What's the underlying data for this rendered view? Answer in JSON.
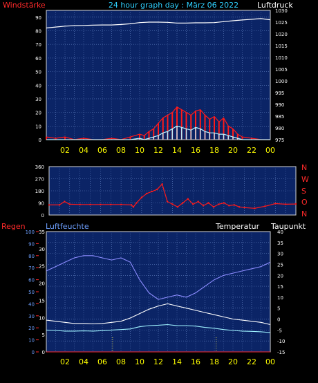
{
  "colors": {
    "background": "#000000",
    "plot_bg": "#0b2466",
    "grid": "#5f7fc0",
    "frame": "#d6d6d6",
    "wind": "#ff1a1a",
    "gust": "#b9f3ff",
    "pressure": "#ffffff",
    "temperature": "#ffffff",
    "dewpoint": "#9ff3ff",
    "humidity": "#8c8cff",
    "rain": "#ff2a2a",
    "title": "#2fd0ff",
    "hour_ticks": "#ffff00",
    "direction_labels": "#ff2a2a",
    "rain_axis": "#ff2a2a",
    "humidity_axis": "#6ea0ff",
    "white_text": "#ffffff",
    "marker": "#f7e84a"
  },
  "chart_data": [
    {
      "type": "line",
      "title": "24 hour graph day : März 06 2022",
      "left_label": "Windstärke",
      "right_label": "Luftdruck",
      "x_ticks": [
        "02",
        "04",
        "06",
        "08",
        "10",
        "12",
        "14",
        "16",
        "18",
        "20",
        "22",
        "00"
      ],
      "ylim_left": [
        0,
        95
      ],
      "y_ticks_left": [
        "90",
        "80",
        "70",
        "60",
        "50",
        "40",
        "30",
        "20",
        "10",
        "0"
      ],
      "ylim_right": [
        975,
        1030
      ],
      "y_ticks_right": [
        "1030",
        "1025",
        "1020",
        "1015",
        "1010",
        "1005",
        "1000",
        "995",
        "990",
        "985",
        "980",
        "975"
      ],
      "grid": true,
      "series": [
        {
          "key": "pressure",
          "axis": "right",
          "x": [
            0,
            1,
            2,
            3,
            4,
            5,
            6,
            7,
            8,
            9,
            10,
            11,
            12,
            13,
            14,
            15,
            16,
            17,
            18,
            19,
            20,
            21,
            22,
            23,
            24
          ],
          "y": [
            1022.5,
            1022.9,
            1023.3,
            1023.5,
            1023.6,
            1023.7,
            1023.8,
            1023.8,
            1024.0,
            1024.3,
            1024.8,
            1025.0,
            1025.0,
            1024.9,
            1024.6,
            1024.6,
            1024.7,
            1024.7,
            1024.8,
            1025.2,
            1025.6,
            1025.9,
            1026.2,
            1026.5,
            1026.0
          ]
        },
        {
          "key": "wind",
          "axis": "left",
          "x": [
            0,
            1,
            2,
            3,
            4,
            5,
            6,
            7,
            8,
            9,
            10,
            10.5,
            11,
            11.5,
            12,
            12.5,
            13,
            13.5,
            14,
            14.5,
            15,
            15.5,
            16,
            16.5,
            17,
            17.5,
            18,
            18.5,
            19,
            19.5,
            20,
            20.5,
            21,
            22,
            23,
            24
          ],
          "y": [
            2,
            1,
            2,
            0,
            1,
            0,
            0,
            1,
            0,
            2,
            4,
            3,
            6,
            8,
            12,
            16,
            18,
            20,
            24,
            22,
            20,
            18,
            21,
            22,
            18,
            15,
            17,
            13,
            16,
            10,
            8,
            4,
            2,
            1,
            0,
            0
          ]
        },
        {
          "key": "gust",
          "axis": "left",
          "x": [
            0,
            1,
            2,
            3,
            4,
            5,
            6,
            7,
            8,
            9,
            10,
            10.5,
            11,
            11.5,
            12,
            12.5,
            13,
            13.5,
            14,
            14.5,
            15,
            15.5,
            16,
            16.5,
            17,
            17.5,
            18,
            18.5,
            19,
            19.5,
            20,
            20.5,
            21,
            22,
            23,
            24
          ],
          "y": [
            0,
            0,
            0,
            0,
            0,
            0,
            0,
            0,
            0,
            0,
            1,
            0,
            1,
            2,
            3,
            5,
            6,
            8,
            10,
            9,
            8,
            7,
            9,
            8,
            6,
            5,
            5,
            4,
            4,
            3,
            2,
            1,
            0,
            0,
            0,
            0
          ]
        }
      ]
    },
    {
      "type": "scatter",
      "title": "",
      "right_labels": [
        "N",
        "W",
        "S",
        "O",
        "N"
      ],
      "x_ticks": [
        "02",
        "04",
        "06",
        "08",
        "10",
        "12",
        "14",
        "16",
        "18",
        "20",
        "22",
        "00"
      ],
      "ylim": [
        0,
        360
      ],
      "y_ticks": [
        "360",
        "270",
        "180",
        "90",
        "0"
      ],
      "grid": true,
      "series": [
        {
          "key": "wind_direction",
          "x": [
            0,
            1,
            1.5,
            2,
            3,
            4,
            5,
            6,
            7,
            8,
            8.2,
            8.5,
            9,
            9.5,
            10,
            10.5,
            11,
            11.5,
            12,
            12.5,
            13,
            13.5,
            14,
            14.5,
            15,
            15.5,
            16,
            16.5,
            17,
            17.5,
            18,
            18.5,
            19,
            20,
            21,
            22,
            23,
            24
          ],
          "y": [
            75,
            75,
            100,
            80,
            78,
            78,
            78,
            78,
            78,
            75,
            60,
            90,
            130,
            160,
            175,
            190,
            230,
            100,
            80,
            60,
            90,
            120,
            80,
            100,
            70,
            90,
            60,
            80,
            90,
            70,
            75,
            60,
            55,
            50,
            65,
            85,
            80,
            82
          ]
        }
      ]
    },
    {
      "type": "line",
      "title": "",
      "left_label": "Regen",
      "left2_label": "Luftfeuchte",
      "right_label": "Temperatur",
      "right2_label": "Taupunkt",
      "x_ticks": [
        "02",
        "04",
        "06",
        "08",
        "10",
        "12",
        "14",
        "16",
        "18",
        "20",
        "22",
        "00"
      ],
      "ylim_rain": [
        0,
        100
      ],
      "y_ticks_rain": [
        "100",
        "90",
        "80",
        "70",
        "60",
        "50",
        "40",
        "30",
        "20",
        "10",
        "0"
      ],
      "ylim_humidity": [
        0,
        35
      ],
      "y_ticks_humidity": [
        "35",
        "30",
        "25",
        "20",
        "15",
        "10",
        "5",
        "0"
      ],
      "ylim_temp": [
        -15,
        40
      ],
      "y_ticks_temp": [
        "40",
        "35",
        "30",
        "25",
        "20",
        "15",
        "10",
        "5",
        "0",
        "-5",
        "-10",
        "-15"
      ],
      "grid": true,
      "series": [
        {
          "key": "humidity",
          "axis": "temp",
          "x": [
            0,
            1,
            2,
            3,
            4,
            5,
            6,
            7,
            8,
            9,
            10,
            11,
            12,
            13,
            14,
            15,
            16,
            17,
            18,
            19,
            20,
            21,
            22,
            23,
            24
          ],
          "y": [
            22,
            24,
            26,
            28,
            29,
            29,
            28,
            27,
            28,
            26,
            18,
            12,
            9,
            10,
            11,
            10,
            12,
            15,
            18,
            20,
            21,
            22,
            23,
            24,
            26
          ]
        },
        {
          "key": "temperature",
          "axis": "temp",
          "x": [
            0,
            1,
            2,
            3,
            4,
            5,
            6,
            7,
            8,
            9,
            10,
            11,
            12,
            13,
            14,
            15,
            16,
            17,
            18,
            19,
            20,
            21,
            22,
            23,
            24
          ],
          "y": [
            -0.5,
            -1.0,
            -1.5,
            -2.0,
            -2.0,
            -2.2,
            -2.0,
            -1.5,
            -1.0,
            0.5,
            2.5,
            4.5,
            6.0,
            7.0,
            6.0,
            5.0,
            4.0,
            3.0,
            2.0,
            1.0,
            0.0,
            -0.5,
            -1.0,
            -1.5,
            -2.5
          ]
        },
        {
          "key": "dewpoint",
          "axis": "temp",
          "x": [
            0,
            1,
            2,
            3,
            4,
            5,
            6,
            7,
            8,
            9,
            10,
            11,
            12,
            13,
            14,
            15,
            16,
            17,
            18,
            19,
            20,
            21,
            22,
            23,
            24
          ],
          "y": [
            -5.0,
            -5.2,
            -5.5,
            -5.5,
            -5.4,
            -5.5,
            -5.3,
            -5.0,
            -4.8,
            -4.5,
            -3.5,
            -3.0,
            -2.8,
            -2.5,
            -3.0,
            -3.0,
            -3.2,
            -3.8,
            -4.2,
            -4.8,
            -5.2,
            -5.5,
            -5.6,
            -5.8,
            -6.2
          ]
        },
        {
          "key": "rain",
          "axis": "rain",
          "x": [
            0,
            24
          ],
          "y": [
            0,
            0
          ]
        }
      ],
      "markers_x": [
        7.1,
        18.2
      ]
    }
  ]
}
